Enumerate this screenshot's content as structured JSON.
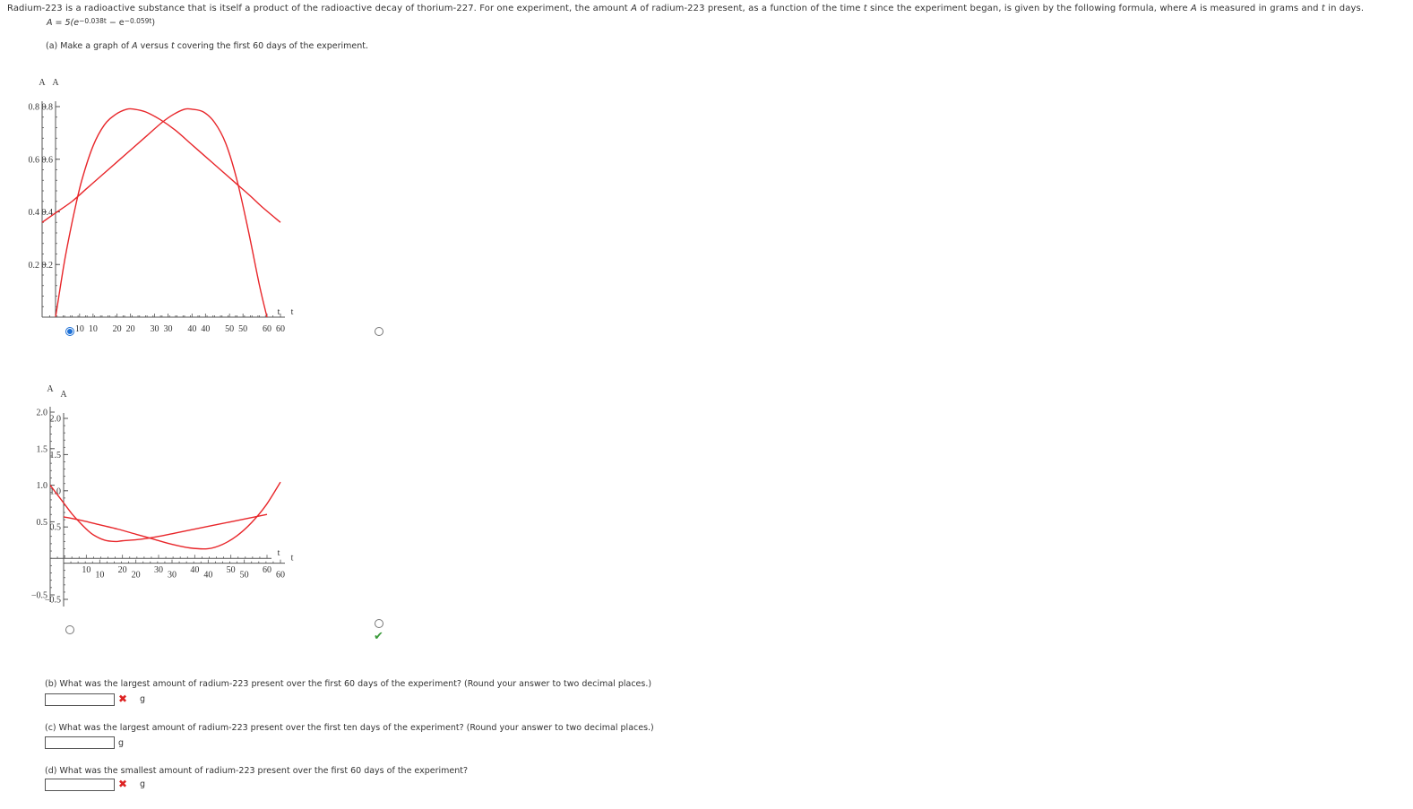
{
  "intro": {
    "part1": "Radium-223 is a radioactive substance that is itself a product of the radioactive decay of thorium-227. For one experiment, the amount ",
    "var_A": "A",
    "part2": " of radium-223 present, as a function of the time ",
    "var_t": "t",
    "part3": " since the experiment began, is given by the following formula, where ",
    "var_A2": "A",
    "part4": " is measured in grams and ",
    "var_t2": "t",
    "part5": " in days."
  },
  "formula": {
    "lhs": "A = 5(e",
    "exp1": "−0.038t",
    "mid": " − e",
    "exp2": "−0.059t",
    "rhs": ")"
  },
  "part_a": {
    "pre": "(a) Make a graph of ",
    "var_A": "A",
    "mid": " versus ",
    "var_t": "t",
    "post": " covering the first 60 days of the experiment."
  },
  "graphs": [
    {
      "selected": true,
      "correct": false,
      "chart_data": {
        "type": "line",
        "ylabel": "A",
        "xlabel": "t",
        "xlim": [
          0,
          60
        ],
        "ylim": [
          0,
          0.8
        ],
        "xticks": [
          "10",
          "20",
          "30",
          "40",
          "50",
          "60"
        ],
        "yticks": [
          "0.2",
          "0.4",
          "0.6",
          "0.8"
        ],
        "series": [
          {
            "color": "#e8262a",
            "x": [
              0,
              1,
              2,
              3,
              5,
              7,
              10,
              13,
              16,
              19,
              21,
              24,
              28,
              32,
              36,
              40,
              44,
              48,
              52,
              55,
              60
            ],
            "y": [
              0,
              0.09,
              0.18,
              0.26,
              0.4,
              0.52,
              0.65,
              0.73,
              0.77,
              0.79,
              0.79,
              0.78,
              0.75,
              0.71,
              0.66,
              0.61,
              0.56,
              0.51,
              0.46,
              0.42,
              0.36
            ]
          }
        ]
      }
    },
    {
      "selected": false,
      "correct": false,
      "chart_data": {
        "type": "line",
        "ylabel": "A",
        "xlabel": "t",
        "xlim": [
          0,
          60
        ],
        "ylim": [
          0,
          0.8
        ],
        "xticks": [
          "10",
          "20",
          "30",
          "40",
          "50",
          "60"
        ],
        "yticks": [
          "0.2",
          "0.4",
          "0.6",
          "0.8"
        ],
        "series": [
          {
            "color": "#e8262a",
            "x": [
              0,
              4,
              8,
              12,
              16,
              20,
              24,
              28,
              32,
              35,
              38,
              40,
              43,
              46,
              49,
              52,
              55,
              58,
              60
            ],
            "y": [
              0.36,
              0.4,
              0.44,
              0.49,
              0.54,
              0.59,
              0.64,
              0.69,
              0.74,
              0.77,
              0.79,
              0.79,
              0.78,
              0.74,
              0.66,
              0.52,
              0.33,
              0.12,
              0.0
            ]
          }
        ]
      }
    },
    {
      "selected": false,
      "correct": false,
      "chart_data": {
        "type": "line",
        "ylabel": "A",
        "xlabel": "t",
        "xlim": [
          0,
          60
        ],
        "ylim": [
          -0.5,
          2.0
        ],
        "xticks": [
          "10",
          "20",
          "30",
          "40",
          "50",
          "60"
        ],
        "yticks": [
          "−0.5",
          "0.5",
          "1.0",
          "1.5",
          "2.0"
        ],
        "series": [
          {
            "color": "#e8262a",
            "x": [
              0,
              5,
              10,
              15,
              20,
              25,
              30,
              35,
              40,
              44,
              48,
              52,
              56,
              60
            ],
            "y": [
              0.64,
              0.59,
              0.53,
              0.47,
              0.4,
              0.33,
              0.26,
              0.21,
              0.2,
              0.26,
              0.38,
              0.56,
              0.8,
              1.12
            ]
          }
        ]
      }
    },
    {
      "selected": false,
      "correct": true,
      "chart_data": {
        "type": "line",
        "ylabel": "A",
        "xlabel": "t",
        "xlim": [
          0,
          60
        ],
        "ylim": [
          -0.5,
          2.0
        ],
        "xticks": [
          "10",
          "20",
          "30",
          "40",
          "50",
          "60"
        ],
        "yticks": [
          "−0.5",
          "0.5",
          "1.0",
          "1.5",
          "2.0"
        ],
        "series": [
          {
            "color": "#e8262a",
            "x": [
              0,
              2,
              4,
              6,
              8,
              10,
              12,
              15,
              18,
              20,
              25,
              30,
              35,
              40,
              45,
              50,
              55,
              60
            ],
            "y": [
              1.0,
              0.87,
              0.74,
              0.61,
              0.5,
              0.4,
              0.32,
              0.25,
              0.23,
              0.24,
              0.26,
              0.3,
              0.35,
              0.4,
              0.45,
              0.5,
              0.55,
              0.6
            ]
          }
        ]
      }
    }
  ],
  "part_b": {
    "question": "(b) What was the largest amount of radium-223 present over the first 60 days of the experiment? (Round your answer to two decimal places.)",
    "value": "",
    "unit": "g",
    "mark": "✖"
  },
  "part_c": {
    "question": "(c) What was the largest amount of radium-223 present over the first ten days of the experiment? (Round your answer to two decimal places.)",
    "value": "",
    "unit": "g"
  },
  "part_d": {
    "question": "(d) What was the smallest amount of radium-223 present over the first 60 days of the experiment?",
    "value": "",
    "unit": "g",
    "mark": "✖"
  },
  "check_glyph": "✔"
}
